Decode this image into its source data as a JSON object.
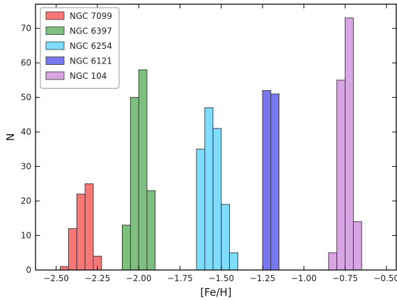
{
  "chart_data": {
    "type": "bar",
    "xlabel": "[Fe/H]",
    "ylabel": "N",
    "xlim": [
      -2.625,
      -0.44
    ],
    "ylim": [
      0,
      77
    ],
    "xticks": [
      -2.5,
      -2.25,
      -2.0,
      -1.75,
      -1.5,
      -1.25,
      -1.0,
      -0.75,
      -0.5
    ],
    "xtick_labels": [
      "−2.50",
      "−2.25",
      "−2.00",
      "−1.75",
      "−1.50",
      "−1.25",
      "−1.00",
      "−0.75",
      "−0.50"
    ],
    "yticks": [
      0,
      10,
      20,
      30,
      40,
      50,
      60,
      70
    ],
    "ytick_labels": [
      "0",
      "10",
      "20",
      "30",
      "40",
      "50",
      "60",
      "70"
    ],
    "bin_width": 0.05,
    "grid": false,
    "legend_position": "top-left",
    "series": [
      {
        "name": "NGC 7099",
        "color": "#f87878",
        "edges": [
          -2.475,
          -2.425,
          -2.375,
          -2.325,
          -2.275,
          -2.225
        ],
        "values": [
          1,
          12,
          22,
          25,
          4,
          1
        ]
      },
      {
        "name": "NGC 6397",
        "color": "#7fbf7f",
        "edges": [
          -2.1,
          -2.05,
          -2.0,
          -1.95,
          -1.9
        ],
        "values": [
          13,
          50,
          58,
          23
        ]
      },
      {
        "name": "NGC 6254",
        "color": "#7fdcff",
        "edges": [
          -1.65,
          -1.6,
          -1.55,
          -1.5,
          -1.45,
          -1.4
        ],
        "values": [
          35,
          47,
          41,
          19,
          5
        ]
      },
      {
        "name": "NGC 6121",
        "color": "#7777ee",
        "edges": [
          -1.25,
          -1.2,
          -1.15
        ],
        "values": [
          52,
          51
        ]
      },
      {
        "name": "NGC 104",
        "color": "#d7a6e3",
        "edges": [
          -0.85,
          -0.8,
          -0.75,
          -0.7,
          -0.65
        ],
        "values": [
          5,
          55,
          73,
          14
        ]
      }
    ]
  }
}
